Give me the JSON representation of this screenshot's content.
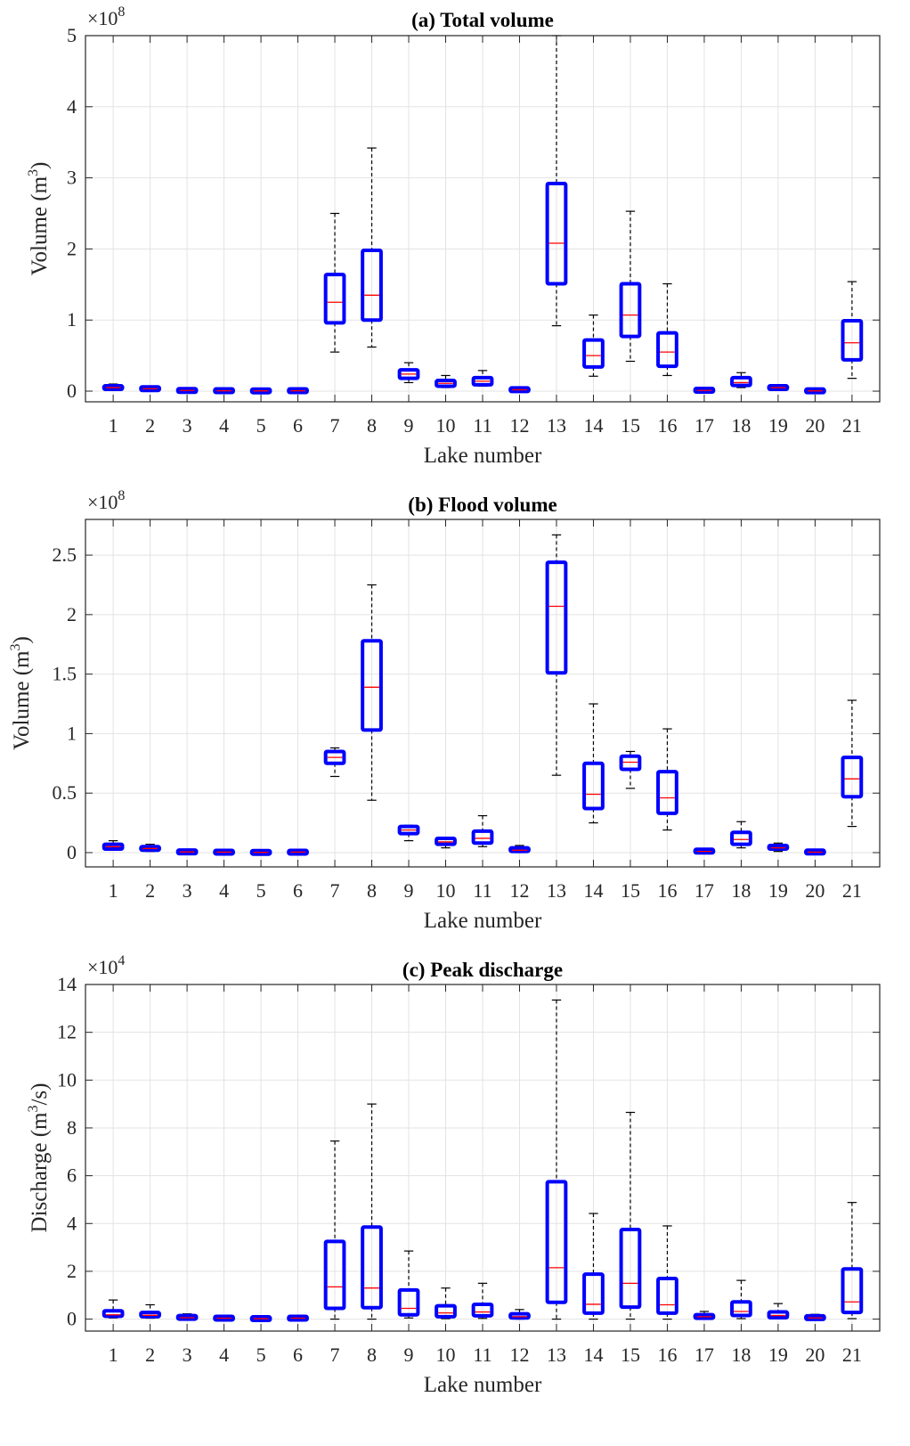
{
  "colors": {
    "box": "#0000ff",
    "median": "#ff0000",
    "whisker": "#000000",
    "grid": "#e3e3e3",
    "axis": "#262626"
  },
  "chart_data": [
    {
      "type": "box",
      "title": "(a) Total volume",
      "xlabel": "Lake number",
      "ylabel_main": "Volume (m",
      "ylabel_sup": "3",
      "ylabel_end": ")",
      "exponent_base": "×10",
      "exponent_power": "8",
      "ylim": [
        -0.15,
        5
      ],
      "yticks": [
        0,
        1,
        2,
        3,
        4,
        5
      ],
      "ytick_labels": [
        "0",
        "1",
        "2",
        "3",
        "4",
        "5"
      ],
      "categories": [
        "1",
        "2",
        "3",
        "4",
        "5",
        "6",
        "7",
        "8",
        "9",
        "10",
        "11",
        "12",
        "13",
        "14",
        "15",
        "16",
        "17",
        "18",
        "19",
        "20",
        "21"
      ],
      "boxes": [
        {
          "wmin": 0.02,
          "q1": 0.03,
          "median": 0.05,
          "q3": 0.07,
          "wmax": 0.1
        },
        {
          "wmin": 0.01,
          "q1": 0.02,
          "median": 0.035,
          "q3": 0.05,
          "wmax": 0.06
        },
        {
          "wmin": 0.0,
          "q1": 0.005,
          "median": 0.01,
          "q3": 0.015,
          "wmax": 0.02
        },
        {
          "wmin": 0.0,
          "q1": 0.003,
          "median": 0.006,
          "q3": 0.01,
          "wmax": 0.015
        },
        {
          "wmin": 0.0,
          "q1": 0.002,
          "median": 0.004,
          "q3": 0.006,
          "wmax": 0.008
        },
        {
          "wmin": 0.0,
          "q1": 0.003,
          "median": 0.006,
          "q3": 0.01,
          "wmax": 0.015
        },
        {
          "wmin": 0.55,
          "q1": 0.96,
          "median": 1.25,
          "q3": 1.64,
          "wmax": 2.5
        },
        {
          "wmin": 0.62,
          "q1": 1.0,
          "median": 1.35,
          "q3": 1.98,
          "wmax": 3.42
        },
        {
          "wmin": 0.12,
          "q1": 0.18,
          "median": 0.24,
          "q3": 0.3,
          "wmax": 0.4
        },
        {
          "wmin": 0.05,
          "q1": 0.07,
          "median": 0.11,
          "q3": 0.15,
          "wmax": 0.22
        },
        {
          "wmin": 0.07,
          "q1": 0.09,
          "median": 0.14,
          "q3": 0.19,
          "wmax": 0.29
        },
        {
          "wmin": 0.0,
          "q1": 0.01,
          "median": 0.02,
          "q3": 0.03,
          "wmax": 0.04
        },
        {
          "wmin": 0.92,
          "q1": 1.51,
          "median": 2.08,
          "q3": 2.92,
          "wmax": 5.0
        },
        {
          "wmin": 0.21,
          "q1": 0.34,
          "median": 0.5,
          "q3": 0.72,
          "wmax": 1.07
        },
        {
          "wmin": 0.42,
          "q1": 0.77,
          "median": 1.07,
          "q3": 1.51,
          "wmax": 2.53
        },
        {
          "wmin": 0.22,
          "q1": 0.35,
          "median": 0.55,
          "q3": 0.82,
          "wmax": 1.51
        },
        {
          "wmin": 0.0,
          "q1": 0.005,
          "median": 0.01,
          "q3": 0.02,
          "wmax": 0.03
        },
        {
          "wmin": 0.05,
          "q1": 0.08,
          "median": 0.12,
          "q3": 0.19,
          "wmax": 0.26
        },
        {
          "wmin": 0.02,
          "q1": 0.03,
          "median": 0.05,
          "q3": 0.07,
          "wmax": 0.08
        },
        {
          "wmin": 0.0,
          "q1": 0.002,
          "median": 0.004,
          "q3": 0.007,
          "wmax": 0.01
        },
        {
          "wmin": 0.18,
          "q1": 0.44,
          "median": 0.68,
          "q3": 0.99,
          "wmax": 1.54
        }
      ]
    },
    {
      "type": "box",
      "title": "(b) Flood volume",
      "xlabel": "Lake number",
      "ylabel_main": "Volume (m",
      "ylabel_sup": "3",
      "ylabel_end": ")",
      "exponent_base": "×10",
      "exponent_power": "8",
      "ylim": [
        -0.12,
        2.8
      ],
      "yticks": [
        0,
        0.5,
        1,
        1.5,
        2,
        2.5
      ],
      "ytick_labels": [
        "0",
        "0.5",
        "1",
        "1.5",
        "2",
        "2.5"
      ],
      "categories": [
        "1",
        "2",
        "3",
        "4",
        "5",
        "6",
        "7",
        "8",
        "9",
        "10",
        "11",
        "12",
        "13",
        "14",
        "15",
        "16",
        "17",
        "18",
        "19",
        "20",
        "21"
      ],
      "boxes": [
        {
          "wmin": 0.02,
          "q1": 0.03,
          "median": 0.05,
          "q3": 0.07,
          "wmax": 0.1
        },
        {
          "wmin": 0.01,
          "q1": 0.02,
          "median": 0.035,
          "q3": 0.05,
          "wmax": 0.07
        },
        {
          "wmin": 0.0,
          "q1": 0.003,
          "median": 0.006,
          "q3": 0.01,
          "wmax": 0.015
        },
        {
          "wmin": 0.0,
          "q1": 0.002,
          "median": 0.004,
          "q3": 0.006,
          "wmax": 0.01
        },
        {
          "wmin": 0.0,
          "q1": 0.001,
          "median": 0.002,
          "q3": 0.003,
          "wmax": 0.005
        },
        {
          "wmin": 0.0,
          "q1": 0.002,
          "median": 0.004,
          "q3": 0.006,
          "wmax": 0.01
        },
        {
          "wmin": 0.64,
          "q1": 0.75,
          "median": 0.8,
          "q3": 0.85,
          "wmax": 0.88
        },
        {
          "wmin": 0.44,
          "q1": 1.03,
          "median": 1.39,
          "q3": 1.78,
          "wmax": 2.25
        },
        {
          "wmin": 0.1,
          "q1": 0.16,
          "median": 0.19,
          "q3": 0.22,
          "wmax": 0.23
        },
        {
          "wmin": 0.04,
          "q1": 0.07,
          "median": 0.09,
          "q3": 0.12,
          "wmax": 0.13
        },
        {
          "wmin": 0.05,
          "q1": 0.08,
          "median": 0.12,
          "q3": 0.18,
          "wmax": 0.31
        },
        {
          "wmin": 0.0,
          "q1": 0.01,
          "median": 0.02,
          "q3": 0.04,
          "wmax": 0.06
        },
        {
          "wmin": 0.65,
          "q1": 1.51,
          "median": 2.07,
          "q3": 2.44,
          "wmax": 2.67
        },
        {
          "wmin": 0.25,
          "q1": 0.37,
          "median": 0.49,
          "q3": 0.75,
          "wmax": 1.25
        },
        {
          "wmin": 0.54,
          "q1": 0.7,
          "median": 0.76,
          "q3": 0.81,
          "wmax": 0.85
        },
        {
          "wmin": 0.19,
          "q1": 0.33,
          "median": 0.46,
          "q3": 0.68,
          "wmax": 1.04
        },
        {
          "wmin": 0.0,
          "q1": 0.005,
          "median": 0.01,
          "q3": 0.02,
          "wmax": 0.03
        },
        {
          "wmin": 0.04,
          "q1": 0.07,
          "median": 0.11,
          "q3": 0.17,
          "wmax": 0.26
        },
        {
          "wmin": 0.01,
          "q1": 0.03,
          "median": 0.04,
          "q3": 0.06,
          "wmax": 0.08
        },
        {
          "wmin": 0.0,
          "q1": 0.002,
          "median": 0.004,
          "q3": 0.008,
          "wmax": 0.01
        },
        {
          "wmin": 0.22,
          "q1": 0.47,
          "median": 0.62,
          "q3": 0.8,
          "wmax": 1.28
        }
      ]
    },
    {
      "type": "box",
      "title": "(c) Peak discharge",
      "xlabel": "Lake number",
      "ylabel_main": "Discharge (m",
      "ylabel_sup": "3",
      "ylabel_end": "/s)",
      "exponent_base": "×10",
      "exponent_power": "4",
      "ylim": [
        -0.5,
        14
      ],
      "yticks": [
        0,
        2,
        4,
        6,
        8,
        10,
        12,
        14
      ],
      "ytick_labels": [
        "0",
        "2",
        "4",
        "6",
        "8",
        "10",
        "12",
        "14"
      ],
      "categories": [
        "1",
        "2",
        "3",
        "4",
        "5",
        "6",
        "7",
        "8",
        "9",
        "10",
        "11",
        "12",
        "13",
        "14",
        "15",
        "16",
        "17",
        "18",
        "19",
        "20",
        "21"
      ],
      "boxes": [
        {
          "wmin": 0.05,
          "q1": 0.12,
          "median": 0.18,
          "q3": 0.35,
          "wmax": 0.8
        },
        {
          "wmin": 0.04,
          "q1": 0.1,
          "median": 0.16,
          "q3": 0.28,
          "wmax": 0.6
        },
        {
          "wmin": 0.01,
          "q1": 0.03,
          "median": 0.06,
          "q3": 0.12,
          "wmax": 0.22
        },
        {
          "wmin": 0.0,
          "q1": 0.02,
          "median": 0.04,
          "q3": 0.06,
          "wmax": 0.1
        },
        {
          "wmin": 0.0,
          "q1": 0.01,
          "median": 0.02,
          "q3": 0.03,
          "wmax": 0.05
        },
        {
          "wmin": 0.0,
          "q1": 0.02,
          "median": 0.04,
          "q3": 0.06,
          "wmax": 0.1
        },
        {
          "wmin": 0.0,
          "q1": 0.45,
          "median": 1.35,
          "q3": 3.25,
          "wmax": 7.45
        },
        {
          "wmin": 0.0,
          "q1": 0.48,
          "median": 1.3,
          "q3": 3.85,
          "wmax": 9.0
        },
        {
          "wmin": 0.05,
          "q1": 0.18,
          "median": 0.45,
          "q3": 1.22,
          "wmax": 2.85
        },
        {
          "wmin": 0.02,
          "q1": 0.1,
          "median": 0.26,
          "q3": 0.56,
          "wmax": 1.3
        },
        {
          "wmin": 0.03,
          "q1": 0.14,
          "median": 0.3,
          "q3": 0.62,
          "wmax": 1.5
        },
        {
          "wmin": 0.0,
          "q1": 0.05,
          "median": 0.1,
          "q3": 0.22,
          "wmax": 0.4
        },
        {
          "wmin": 0.0,
          "q1": 0.7,
          "median": 2.15,
          "q3": 5.75,
          "wmax": 13.35
        },
        {
          "wmin": 0.0,
          "q1": 0.25,
          "median": 0.62,
          "q3": 1.88,
          "wmax": 4.42
        },
        {
          "wmin": 0.0,
          "q1": 0.5,
          "median": 1.5,
          "q3": 3.75,
          "wmax": 8.65
        },
        {
          "wmin": 0.0,
          "q1": 0.25,
          "median": 0.6,
          "q3": 1.7,
          "wmax": 3.9
        },
        {
          "wmin": 0.0,
          "q1": 0.04,
          "median": 0.1,
          "q3": 0.18,
          "wmax": 0.32
        },
        {
          "wmin": 0.02,
          "q1": 0.15,
          "median": 0.32,
          "q3": 0.72,
          "wmax": 1.62
        },
        {
          "wmin": 0.01,
          "q1": 0.06,
          "median": 0.15,
          "q3": 0.3,
          "wmax": 0.65
        },
        {
          "wmin": 0.0,
          "q1": 0.03,
          "median": 0.05,
          "q3": 0.1,
          "wmax": 0.2
        },
        {
          "wmin": 0.02,
          "q1": 0.28,
          "median": 0.72,
          "q3": 2.1,
          "wmax": 4.88
        }
      ]
    }
  ]
}
